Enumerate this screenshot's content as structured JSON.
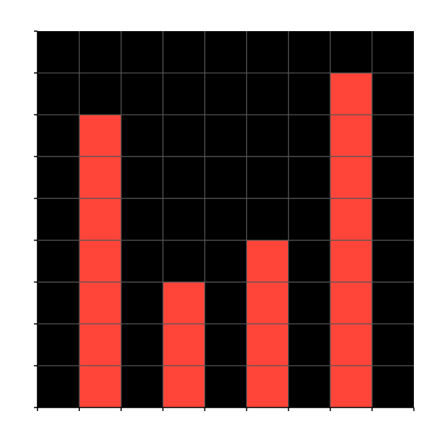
{
  "chart_data": {
    "type": "bar",
    "xlim": [
      0,
      9
    ],
    "ylim": [
      0,
      9
    ],
    "x_ticks": [
      0,
      1,
      2,
      3,
      4,
      5,
      6,
      7,
      8,
      9
    ],
    "y_ticks": [
      0,
      1,
      2,
      3,
      4,
      5,
      6,
      7,
      8,
      9
    ],
    "grid": true,
    "bars": [
      {
        "x_start": 1,
        "x_end": 2,
        "value": 7
      },
      {
        "x_start": 3,
        "x_end": 4,
        "value": 3
      },
      {
        "x_start": 5,
        "x_end": 6,
        "value": 4
      },
      {
        "x_start": 7,
        "x_end": 8,
        "value": 8
      }
    ],
    "colors": {
      "plot_background": "#000000",
      "bar": "#ff453a",
      "grid": "#555555",
      "axis": "#000000"
    }
  }
}
